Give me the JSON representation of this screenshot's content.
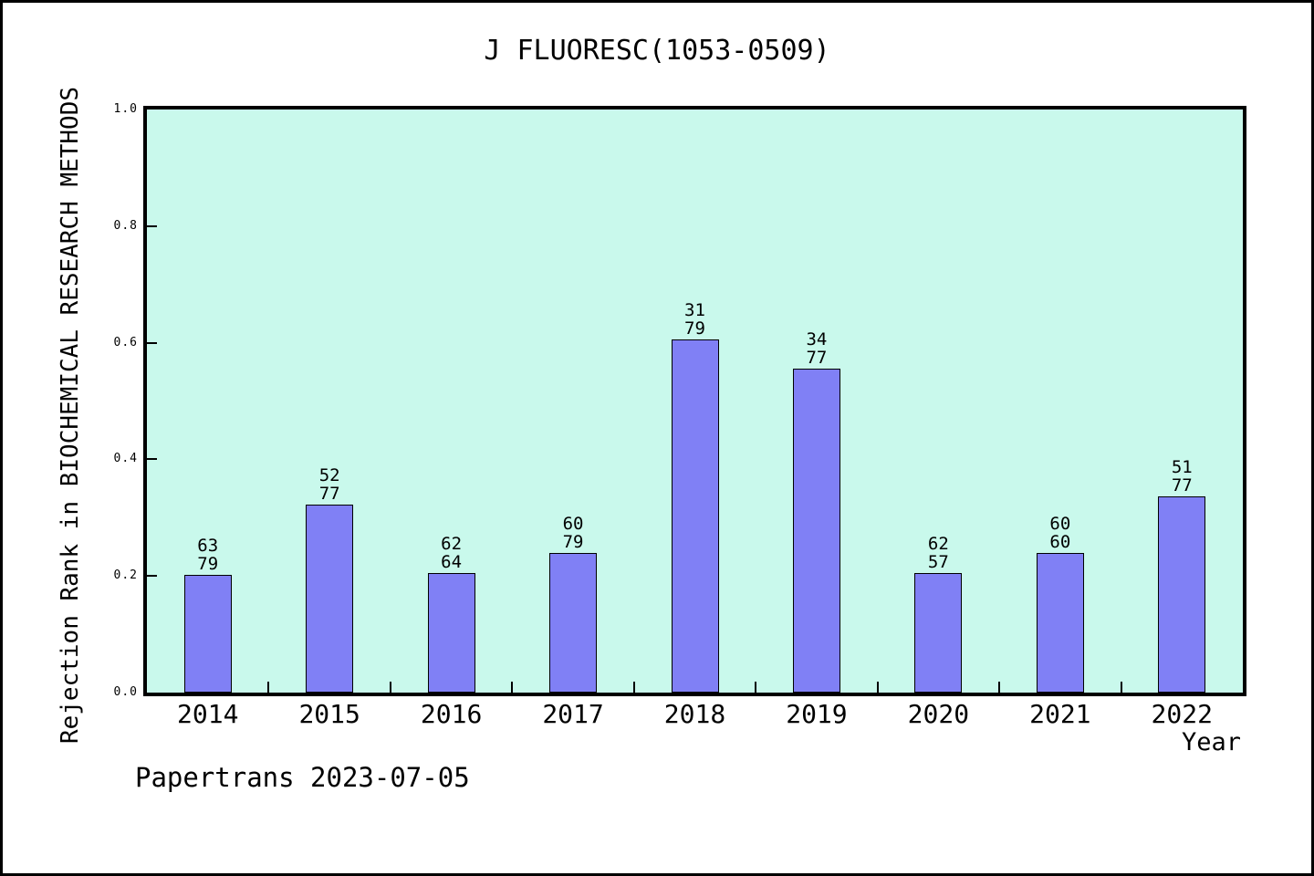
{
  "page": {
    "footer": "Papertrans 2023-07-05",
    "background": "#ffffff",
    "frame_color": "#000000"
  },
  "chart_data": {
    "type": "bar",
    "title": "J FLUORESC(1053-0509)",
    "xlabel": "Year",
    "ylabel": "Rejection Rank in BIOCHEMICAL RESEARCH METHODS",
    "categories": [
      "2014",
      "2015",
      "2016",
      "2017",
      "2018",
      "2019",
      "2020",
      "2021",
      "2022"
    ],
    "bars": [
      {
        "year": "2014",
        "value": 0.202,
        "label_top": "63",
        "label_bottom": "79"
      },
      {
        "year": "2015",
        "value": 0.323,
        "label_top": "52",
        "label_bottom": "77"
      },
      {
        "year": "2016",
        "value": 0.205,
        "label_top": "62",
        "label_bottom": "64"
      },
      {
        "year": "2017",
        "value": 0.24,
        "label_top": "60",
        "label_bottom": "79"
      },
      {
        "year": "2018",
        "value": 0.605,
        "label_top": "31",
        "label_bottom": "79"
      },
      {
        "year": "2019",
        "value": 0.555,
        "label_top": "34",
        "label_bottom": "77"
      },
      {
        "year": "2020",
        "value": 0.205,
        "label_top": "62",
        "label_bottom": "57"
      },
      {
        "year": "2021",
        "value": 0.24,
        "label_top": "60",
        "label_bottom": "60"
      },
      {
        "year": "2022",
        "value": 0.337,
        "label_top": "51",
        "label_bottom": "77"
      }
    ],
    "yticks": [
      {
        "label": "0.0",
        "value": 0.0
      },
      {
        "label": "0.2",
        "value": 0.2
      },
      {
        "label": "0.4",
        "value": 0.4
      },
      {
        "label": "0.6",
        "value": 0.6
      },
      {
        "label": "0.8",
        "value": 0.8
      },
      {
        "label": "1.0",
        "value": 1.0
      }
    ],
    "ylim": [
      0,
      1
    ],
    "grid": false,
    "legend": null,
    "colors": {
      "bar_fill": "#8080f5",
      "bar_border": "#000000",
      "plot_background": "#c9f9ec",
      "axis": "#000000",
      "text": "#000000"
    }
  }
}
